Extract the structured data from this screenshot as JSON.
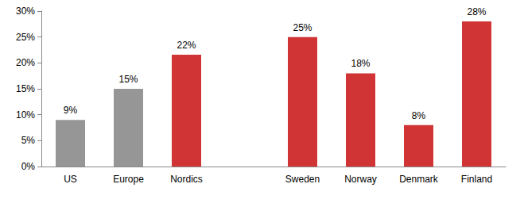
{
  "chart_data": {
    "type": "bar",
    "categories": [
      "US",
      "Europe",
      "Nordics",
      null,
      "Sweden",
      "Norway",
      "Denmark",
      "Finland"
    ],
    "values": [
      9,
      15,
      21.6,
      null,
      25,
      18,
      8,
      28
    ],
    "value_labels": [
      "9%",
      "15%",
      "22%",
      null,
      "25%",
      "18%",
      "8%",
      "28%"
    ],
    "colors": [
      "#969696",
      "#969696",
      "#d03434",
      null,
      "#d03434",
      "#d03434",
      "#d03434",
      "#d03434"
    ],
    "ylim": [
      0,
      30
    ],
    "yticks": [
      {
        "value": 0,
        "label": "0%"
      },
      {
        "value": 5,
        "label": "5%"
      },
      {
        "value": 10,
        "label": "10%"
      },
      {
        "value": 15,
        "label": "15%"
      },
      {
        "value": 20,
        "label": "20%"
      },
      {
        "value": 25,
        "label": "25%"
      },
      {
        "value": 30,
        "label": "30%"
      }
    ],
    "grid": false,
    "data_labels": true
  }
}
